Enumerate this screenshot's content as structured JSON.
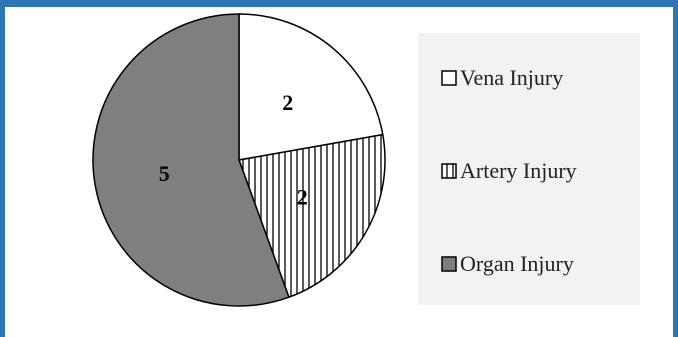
{
  "chart_data": {
    "type": "pie",
    "categories": [
      "Vena Injury",
      "Artery Injury",
      "Organ Injury"
    ],
    "values": [
      2,
      2,
      5
    ],
    "colors": [
      "#ffffff",
      "#ffffff",
      "#7f7f7f"
    ],
    "patterns": [
      "solid",
      "vertical-stripes",
      "solid"
    ],
    "title": "",
    "legend_position": "right"
  }
}
